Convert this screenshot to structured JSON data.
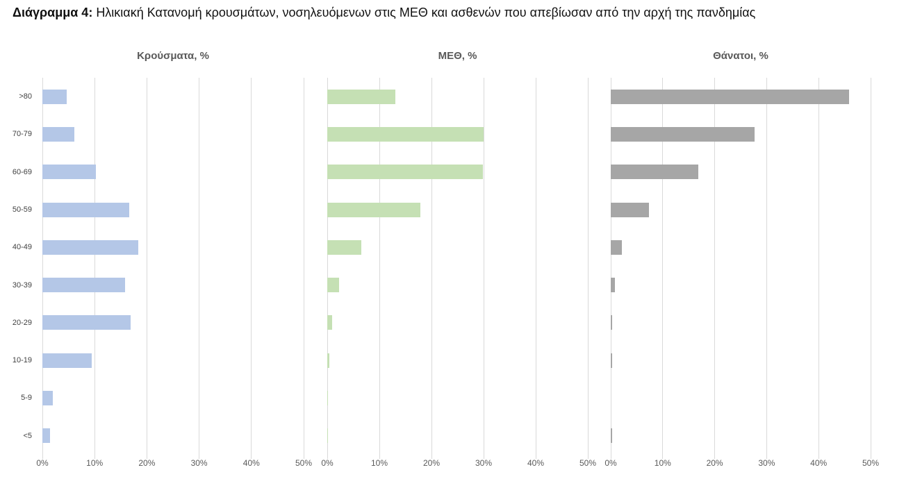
{
  "title": {
    "prefix": "Διάγραμμα 4:",
    "rest": "Ηλικιακή Κατανομή κρουσμάτων, νοσηλευόμενων στις ΜΕΘ και ασθενών που απεβίωσαν από την αρχή της πανδημίας"
  },
  "chart_data": {
    "type": "bar",
    "orientation": "horizontal",
    "categories_top_to_bottom": [
      ">80",
      "70-79",
      "60-69",
      "50-59",
      "40-49",
      "30-39",
      "20-29",
      "10-19",
      "5-9",
      "<5"
    ],
    "x_axis": {
      "min": 0,
      "max": 50,
      "ticks": [
        "0%",
        "10%",
        "20%",
        "30%",
        "40%",
        "50%"
      ],
      "unit": "%"
    },
    "grid": "vertical-gridlines-on",
    "legend": "none",
    "charts": [
      {
        "id": "cases",
        "title": "Κρούσματα, %",
        "color": "#b4c7e7",
        "values": [
          4.6,
          6.1,
          10.2,
          16.6,
          18.4,
          15.8,
          16.9,
          9.4,
          2.0,
          1.4
        ]
      },
      {
        "id": "icu",
        "title": "ΜΕΘ, %",
        "color": "#c5e0b4",
        "values": [
          13.1,
          30.0,
          29.8,
          17.8,
          6.5,
          2.3,
          0.9,
          0.4,
          0.15,
          0.15
        ]
      },
      {
        "id": "deaths",
        "title": "Θάνατοι, %",
        "color": "#a6a6a6",
        "values": [
          45.8,
          27.7,
          16.8,
          7.4,
          2.1,
          0.8,
          0.3,
          0.25,
          0,
          0.25
        ]
      }
    ]
  },
  "colors": {
    "gridline": "#d9d9d9",
    "axis_text": "#595959",
    "panel_title_text": "#595959",
    "category_text": "#404040"
  }
}
